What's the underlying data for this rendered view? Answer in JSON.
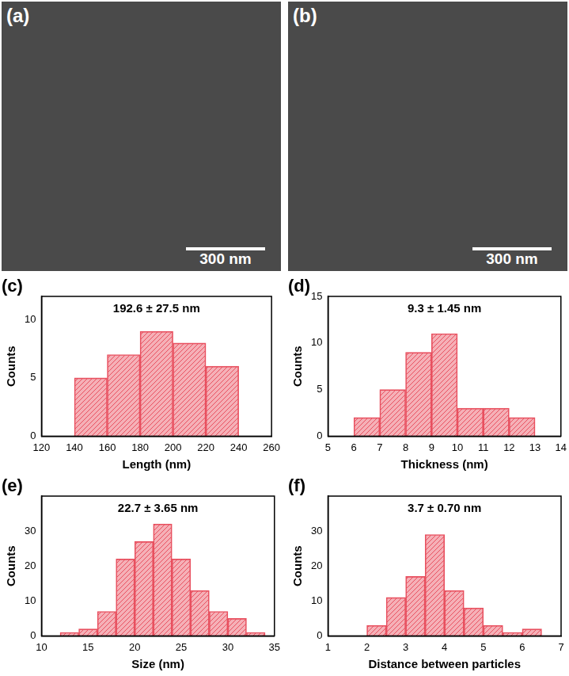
{
  "images": [
    {
      "label": "(a)",
      "scale_bar": "300 nm"
    },
    {
      "label": "(b)",
      "scale_bar": "300 nm"
    }
  ],
  "chart_data": [
    {
      "type": "histogram",
      "annotations": [
        "(c)"
      ],
      "title": "192.6 ± 27.5 nm",
      "x_label": "Length (nm)",
      "y_label": "Counts",
      "bins": [
        140,
        160,
        180,
        200,
        220,
        240
      ],
      "values": [
        5,
        7,
        9,
        8,
        6
      ],
      "color": "#e8505f",
      "xlim": [
        120,
        260
      ],
      "xticks": [
        120,
        140,
        160,
        180,
        200,
        220,
        240,
        260
      ],
      "ylim": [
        0,
        12
      ],
      "yticks": [
        0,
        5,
        10
      ],
      "grid": false
    },
    {
      "type": "histogram",
      "annotations": [
        "(d)"
      ],
      "title": "9.3 ± 1.45 nm",
      "x_label": "Thickness (nm)",
      "y_label": "Counts",
      "bins": [
        6,
        7,
        8,
        9,
        10,
        11,
        12,
        13
      ],
      "values": [
        2,
        5,
        9,
        11,
        3,
        3,
        2
      ],
      "color": "#e8505f",
      "xlim": [
        5,
        14
      ],
      "xticks": [
        5,
        6,
        7,
        8,
        9,
        10,
        11,
        12,
        13,
        14
      ],
      "ylim": [
        0,
        15
      ],
      "yticks": [
        0,
        5,
        10,
        15
      ],
      "grid": false
    },
    {
      "type": "histogram",
      "annotations": [
        "(e)"
      ],
      "title": "22.7 ± 3.65 nm",
      "x_label": "Size (nm)",
      "y_label": "Counts",
      "bins": [
        12,
        14,
        16,
        18,
        20,
        22,
        24,
        26,
        28,
        30,
        32,
        34
      ],
      "values": [
        1,
        2,
        7,
        22,
        27,
        32,
        22,
        13,
        7,
        5,
        1
      ],
      "color": "#e8505f",
      "xlim": [
        10,
        35
      ],
      "xticks": [
        10,
        15,
        20,
        25,
        30,
        35
      ],
      "ylim": [
        0,
        40
      ],
      "yticks": [
        0,
        10,
        20,
        30
      ],
      "grid": false
    },
    {
      "type": "histogram",
      "annotations": [
        "(f)"
      ],
      "title": "3.7 ± 0.70 nm",
      "x_label": "Distance between particles",
      "y_label": "Counts",
      "bins": [
        2,
        2.5,
        3,
        3.5,
        4,
        4.5,
        5,
        5.5,
        6,
        6.5
      ],
      "values": [
        3,
        11,
        17,
        29,
        13,
        8,
        3,
        1,
        2
      ],
      "color": "#e8505f",
      "xlim": [
        1,
        7
      ],
      "xticks": [
        1,
        2,
        3,
        4,
        5,
        6,
        7
      ],
      "ylim": [
        0,
        40
      ],
      "yticks": [
        0,
        10,
        20,
        30
      ],
      "grid": false
    }
  ]
}
